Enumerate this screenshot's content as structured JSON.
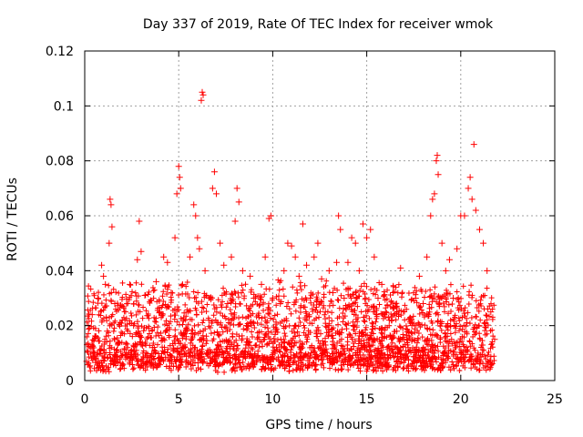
{
  "chart_data": {
    "type": "scatter",
    "title": "Day 337 of 2019, Rate Of TEC Index for receiver wmok",
    "xlabel": "GPS time / hours",
    "ylabel": "ROTI / TECUs",
    "xlim": [
      0,
      25
    ],
    "ylim": [
      0,
      0.12
    ],
    "x_ticks": [
      "0",
      "5",
      "10",
      "15",
      "20",
      "25"
    ],
    "y_ticks": [
      "0",
      "0.02",
      "0.04",
      "0.06",
      "0.08",
      "0.1",
      "0.12"
    ],
    "grid": true,
    "marker": "plus",
    "color": "#ff0000",
    "series": [
      {
        "points": [
          [
            0.1,
            0.007
          ],
          [
            0.2,
            0.02
          ],
          [
            0.3,
            0.012
          ],
          [
            0.4,
            0.024
          ],
          [
            0.5,
            0.009
          ],
          [
            0.6,
            0.016
          ],
          [
            0.7,
            0.03
          ],
          [
            0.8,
            0.011
          ],
          [
            0.9,
            0.042
          ],
          [
            1.0,
            0.038
          ],
          [
            1.1,
            0.035
          ],
          [
            1.2,
            0.018
          ],
          [
            1.3,
            0.05
          ],
          [
            1.35,
            0.066
          ],
          [
            1.4,
            0.064
          ],
          [
            1.45,
            0.056
          ],
          [
            1.6,
            0.028
          ],
          [
            1.8,
            0.014
          ],
          [
            2.0,
            0.022
          ],
          [
            2.2,
            0.01
          ],
          [
            2.4,
            0.035
          ],
          [
            2.6,
            0.02
          ],
          [
            2.8,
            0.044
          ],
          [
            2.9,
            0.058
          ],
          [
            3.0,
            0.047
          ],
          [
            3.2,
            0.031
          ],
          [
            3.4,
            0.019
          ],
          [
            3.6,
            0.012
          ],
          [
            3.8,
            0.036
          ],
          [
            4.0,
            0.025
          ],
          [
            4.2,
            0.045
          ],
          [
            4.4,
            0.043
          ],
          [
            4.6,
            0.032
          ],
          [
            4.8,
            0.052
          ],
          [
            4.9,
            0.068
          ],
          [
            5.0,
            0.078
          ],
          [
            5.05,
            0.074
          ],
          [
            5.1,
            0.07
          ],
          [
            5.2,
            0.035
          ],
          [
            5.4,
            0.016
          ],
          [
            5.6,
            0.045
          ],
          [
            5.8,
            0.064
          ],
          [
            5.9,
            0.06
          ],
          [
            6.0,
            0.052
          ],
          [
            6.1,
            0.048
          ],
          [
            6.2,
            0.102
          ],
          [
            6.25,
            0.105
          ],
          [
            6.3,
            0.104
          ],
          [
            6.4,
            0.04
          ],
          [
            6.6,
            0.022
          ],
          [
            6.8,
            0.07
          ],
          [
            6.9,
            0.076
          ],
          [
            7.0,
            0.068
          ],
          [
            7.2,
            0.05
          ],
          [
            7.4,
            0.042
          ],
          [
            7.6,
            0.028
          ],
          [
            7.8,
            0.045
          ],
          [
            8.0,
            0.058
          ],
          [
            8.1,
            0.07
          ],
          [
            8.2,
            0.065
          ],
          [
            8.4,
            0.04
          ],
          [
            8.6,
            0.02
          ],
          [
            8.8,
            0.038
          ],
          [
            9.0,
            0.03
          ],
          [
            9.2,
            0.015
          ],
          [
            9.4,
            0.035
          ],
          [
            9.6,
            0.045
          ],
          [
            9.8,
            0.059
          ],
          [
            9.9,
            0.06
          ],
          [
            10.0,
            0.03
          ],
          [
            10.2,
            0.012
          ],
          [
            10.4,
            0.028
          ],
          [
            10.6,
            0.04
          ],
          [
            10.8,
            0.05
          ],
          [
            11.0,
            0.049
          ],
          [
            11.2,
            0.045
          ],
          [
            11.4,
            0.038
          ],
          [
            11.6,
            0.057
          ],
          [
            11.8,
            0.042
          ],
          [
            12.0,
            0.03
          ],
          [
            12.2,
            0.045
          ],
          [
            12.4,
            0.05
          ],
          [
            12.6,
            0.037
          ],
          [
            12.8,
            0.025
          ],
          [
            13.0,
            0.04
          ],
          [
            13.2,
            0.032
          ],
          [
            13.4,
            0.043
          ],
          [
            13.5,
            0.06
          ],
          [
            13.6,
            0.055
          ],
          [
            13.8,
            0.03
          ],
          [
            14.0,
            0.043
          ],
          [
            14.2,
            0.052
          ],
          [
            14.4,
            0.05
          ],
          [
            14.6,
            0.04
          ],
          [
            14.8,
            0.057
          ],
          [
            15.0,
            0.052
          ],
          [
            15.2,
            0.055
          ],
          [
            15.4,
            0.045
          ],
          [
            15.6,
            0.03
          ],
          [
            15.8,
            0.035
          ],
          [
            16.0,
            0.025
          ],
          [
            16.2,
            0.022
          ],
          [
            16.4,
            0.032
          ],
          [
            16.6,
            0.018
          ],
          [
            16.8,
            0.041
          ],
          [
            17.0,
            0.015
          ],
          [
            17.2,
            0.012
          ],
          [
            17.4,
            0.02
          ],
          [
            17.6,
            0.03
          ],
          [
            17.8,
            0.038
          ],
          [
            18.0,
            0.028
          ],
          [
            18.2,
            0.045
          ],
          [
            18.4,
            0.06
          ],
          [
            18.5,
            0.066
          ],
          [
            18.6,
            0.068
          ],
          [
            18.7,
            0.08
          ],
          [
            18.75,
            0.082
          ],
          [
            18.8,
            0.075
          ],
          [
            19.0,
            0.05
          ],
          [
            19.2,
            0.04
          ],
          [
            19.4,
            0.044
          ],
          [
            19.6,
            0.03
          ],
          [
            19.8,
            0.048
          ],
          [
            20.0,
            0.06
          ],
          [
            20.2,
            0.06
          ],
          [
            20.4,
            0.07
          ],
          [
            20.5,
            0.074
          ],
          [
            20.6,
            0.066
          ],
          [
            20.7,
            0.086
          ],
          [
            20.8,
            0.062
          ],
          [
            21.0,
            0.055
          ],
          [
            21.2,
            0.05
          ],
          [
            21.4,
            0.04
          ],
          [
            21.6,
            0.025
          ],
          [
            21.8,
            0.015
          ]
        ]
      }
    ]
  }
}
